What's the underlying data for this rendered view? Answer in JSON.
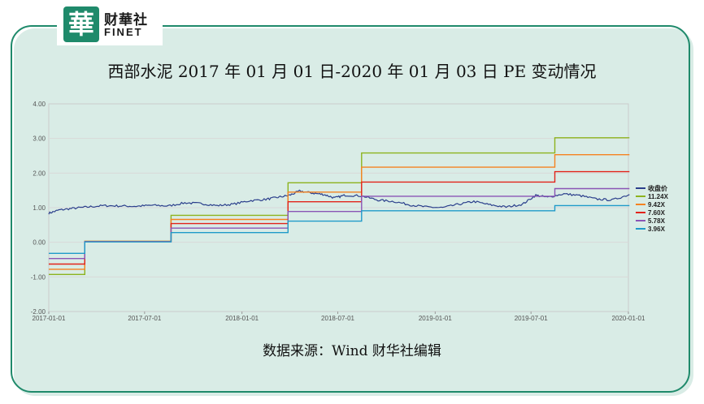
{
  "logo": {
    "mark": "華",
    "cn": "财華社",
    "en": "FINET"
  },
  "title": "西部水泥 2017 年 01 月 01 日-2020 年 01 月 03 日 PE 变动情况",
  "source": "数据来源：Wind   财华社编辑",
  "colors": {
    "frame": "#1f8a6b"
  },
  "chart_data": {
    "type": "line",
    "title": "",
    "xlabel": "",
    "ylabel": "",
    "ylim": [
      -2,
      4
    ],
    "yticks": [
      "4.00",
      "3.00",
      "2.00",
      "1.00",
      "0.00",
      "-1.00",
      "-2.00"
    ],
    "xticks": [
      "2017-01-01",
      "2017-07-01",
      "2018-01-01",
      "2018-07-01",
      "2019-01-01",
      "2019-07-01",
      "2020-01-01"
    ],
    "legend_position": "right",
    "grid": true,
    "series": [
      {
        "name": "收盘价",
        "color": "#2b3f8c",
        "points": [
          [
            "2017-01-01",
            0.84
          ],
          [
            "2017-01-20",
            0.93
          ],
          [
            "2017-02-15",
            0.98
          ],
          [
            "2017-03-15",
            1.02
          ],
          [
            "2017-04-15",
            1.06
          ],
          [
            "2017-05-15",
            1.05
          ],
          [
            "2017-06-15",
            1.04
          ],
          [
            "2017-07-15",
            1.07
          ],
          [
            "2017-08-15",
            1.05
          ],
          [
            "2017-09-15",
            1.14
          ],
          [
            "2017-10-15",
            1.12
          ],
          [
            "2017-11-15",
            1.06
          ],
          [
            "2017-12-15",
            1.1
          ],
          [
            "2018-01-15",
            1.2
          ],
          [
            "2018-02-15",
            1.24
          ],
          [
            "2018-03-10",
            1.3
          ],
          [
            "2018-04-01",
            1.36
          ],
          [
            "2018-04-20",
            1.48
          ],
          [
            "2018-05-15",
            1.42
          ],
          [
            "2018-06-05",
            1.38
          ],
          [
            "2018-06-25",
            1.28
          ],
          [
            "2018-07-15",
            1.36
          ],
          [
            "2018-08-15",
            1.34
          ],
          [
            "2018-09-15",
            1.22
          ],
          [
            "2018-10-15",
            1.18
          ],
          [
            "2018-11-15",
            1.08
          ],
          [
            "2018-12-15",
            1.02
          ],
          [
            "2019-01-15",
            1.0
          ],
          [
            "2019-02-15",
            1.1
          ],
          [
            "2019-03-15",
            1.18
          ],
          [
            "2019-04-15",
            1.08
          ],
          [
            "2019-05-15",
            1.02
          ],
          [
            "2019-06-15",
            1.1
          ],
          [
            "2019-07-10",
            1.36
          ],
          [
            "2019-08-01",
            1.3
          ],
          [
            "2019-09-01",
            1.4
          ],
          [
            "2019-10-01",
            1.35
          ],
          [
            "2019-11-01",
            1.25
          ],
          [
            "2019-12-01",
            1.22
          ],
          [
            "2020-01-03",
            1.38
          ]
        ]
      },
      {
        "name": "11.24X",
        "color": "#8db31e",
        "steps": [
          [
            "2017-01-01",
            -0.93
          ],
          [
            "2017-03-10",
            0.03
          ],
          [
            "2017-08-20",
            0.78
          ],
          [
            "2018-03-29",
            1.72
          ],
          [
            "2018-08-15",
            2.58
          ],
          [
            "2019-08-15",
            3.02
          ],
          [
            "2020-01-03",
            3.02
          ]
        ]
      },
      {
        "name": "9.42X",
        "color": "#f58220",
        "steps": [
          [
            "2017-01-01",
            -0.78
          ],
          [
            "2017-03-10",
            0.03
          ],
          [
            "2017-08-20",
            0.66
          ],
          [
            "2018-03-29",
            1.45
          ],
          [
            "2018-08-15",
            2.17
          ],
          [
            "2019-08-15",
            2.53
          ],
          [
            "2020-01-03",
            2.53
          ]
        ]
      },
      {
        "name": "7.60X",
        "color": "#e2231a",
        "steps": [
          [
            "2017-01-01",
            -0.63
          ],
          [
            "2017-03-10",
            0.02
          ],
          [
            "2017-08-20",
            0.54
          ],
          [
            "2018-03-29",
            1.17
          ],
          [
            "2018-08-15",
            1.74
          ],
          [
            "2019-08-15",
            2.04
          ],
          [
            "2020-01-03",
            2.04
          ]
        ]
      },
      {
        "name": "5.78X",
        "color": "#8a55b5",
        "steps": [
          [
            "2017-01-01",
            -0.47
          ],
          [
            "2017-03-10",
            0.02
          ],
          [
            "2017-08-20",
            0.41
          ],
          [
            "2018-03-29",
            0.89
          ],
          [
            "2018-08-15",
            1.33
          ],
          [
            "2019-08-15",
            1.55
          ],
          [
            "2020-01-03",
            1.55
          ]
        ]
      },
      {
        "name": "3.96X",
        "color": "#1f9ac9",
        "steps": [
          [
            "2017-01-01",
            -0.32
          ],
          [
            "2017-03-10",
            0.01
          ],
          [
            "2017-08-20",
            0.28
          ],
          [
            "2018-03-29",
            0.61
          ],
          [
            "2018-08-15",
            0.91
          ],
          [
            "2019-08-15",
            1.06
          ],
          [
            "2020-01-03",
            1.06
          ]
        ]
      }
    ]
  }
}
